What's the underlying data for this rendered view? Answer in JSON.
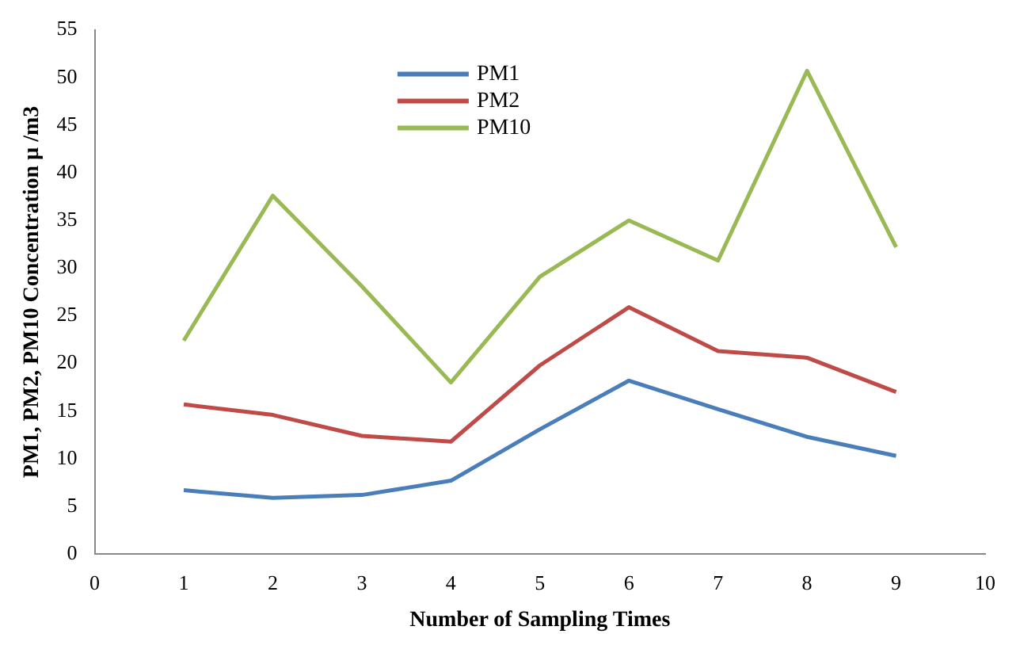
{
  "chart_data": {
    "type": "line",
    "xlabel": "Number of Sampling Times",
    "ylabel": "PM1, PM2, PM10 Concentration µ /m3",
    "x": [
      1,
      2,
      3,
      4,
      5,
      6,
      7,
      8,
      9
    ],
    "series": [
      {
        "name": "PM1",
        "color": "#4a7ebb",
        "values": [
          6.7,
          5.9,
          6.2,
          7.7,
          13.1,
          18.2,
          15.2,
          12.3,
          10.3
        ]
      },
      {
        "name": "PM2",
        "color": "#be4b48",
        "values": [
          15.7,
          14.6,
          12.4,
          11.8,
          19.8,
          25.9,
          21.3,
          20.6,
          17.0
        ]
      },
      {
        "name": "PM10",
        "color": "#98b954",
        "values": [
          22.4,
          37.6,
          28.1,
          18.0,
          29.1,
          35.0,
          30.8,
          50.7,
          32.2
        ]
      }
    ],
    "xlim": [
      0,
      10
    ],
    "xticks": [
      0,
      1,
      2,
      3,
      4,
      5,
      6,
      7,
      8,
      9,
      10
    ],
    "ylim": [
      0,
      55
    ],
    "yticks": [
      0,
      5,
      10,
      15,
      20,
      25,
      30,
      35,
      40,
      45,
      50,
      55
    ],
    "grid": false,
    "legend": "top",
    "marker": "none",
    "line_style": "solid"
  }
}
